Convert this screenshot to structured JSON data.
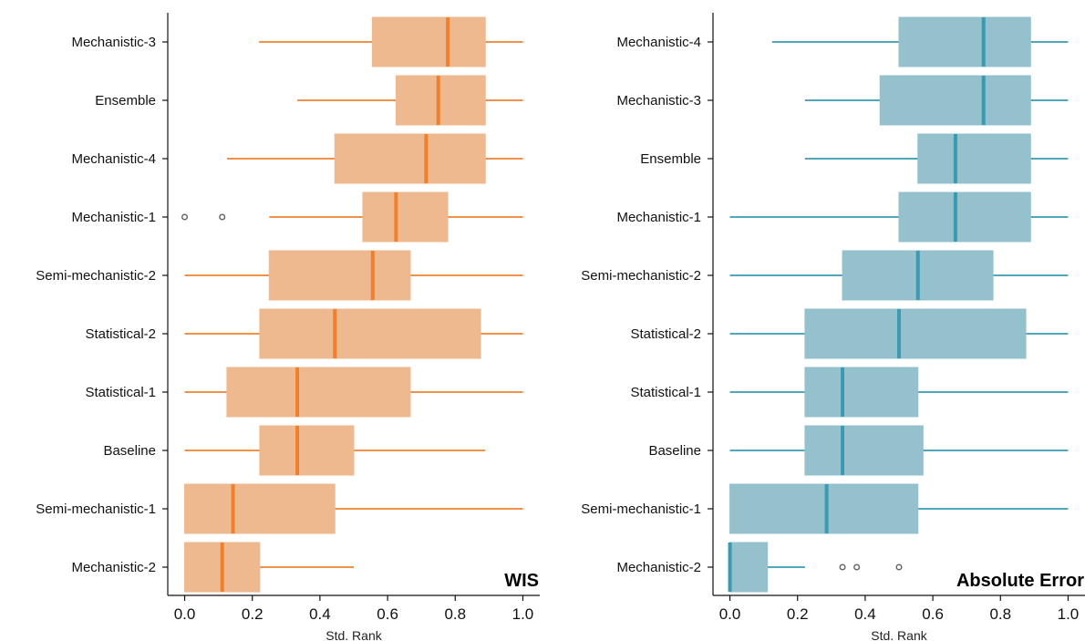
{
  "colors": {
    "wis_box": "#EEB98F",
    "wis_line": "#F07F2E",
    "ae_box": "#94C1CC",
    "ae_line": "#3A9AB2",
    "axis": "#111111",
    "outlier": "#666666"
  },
  "chart_data": [
    {
      "type": "boxplot",
      "orientation": "horizontal",
      "title": "WIS",
      "xlabel": "Std. Rank",
      "xlim": [
        -0.05,
        1.05
      ],
      "xticks": [
        "0.0",
        "0.2",
        "0.4",
        "0.6",
        "0.8",
        "1.0"
      ],
      "xtick_values": [
        0,
        0.2,
        0.4,
        0.6,
        0.8,
        1.0
      ],
      "grid": false,
      "categories": [
        "Mechanistic-3",
        "Ensemble",
        "Mechanistic-4",
        "Mechanistic-1",
        "Semi-mechanistic-2",
        "Statistical-2",
        "Statistical-1",
        "Baseline",
        "Semi-mechanistic-1",
        "Mechanistic-2"
      ],
      "boxes": [
        {
          "whislo": 0.22,
          "q1": 0.555,
          "med": 0.778,
          "q3": 0.889,
          "whishi": 1.0,
          "fliers": []
        },
        {
          "whislo": 0.333,
          "q1": 0.625,
          "med": 0.75,
          "q3": 0.889,
          "whishi": 1.0,
          "fliers": []
        },
        {
          "whislo": 0.125,
          "q1": 0.444,
          "med": 0.714,
          "q3": 0.889,
          "whishi": 1.0,
          "fliers": []
        },
        {
          "whislo": 0.25,
          "q1": 0.527,
          "med": 0.625,
          "q3": 0.778,
          "whishi": 1.0,
          "fliers": [
            0.0,
            0.111
          ]
        },
        {
          "whislo": 0.0,
          "q1": 0.25,
          "med": 0.556,
          "q3": 0.667,
          "whishi": 1.0,
          "fliers": []
        },
        {
          "whislo": 0.0,
          "q1": 0.222,
          "med": 0.444,
          "q3": 0.875,
          "whishi": 1.0,
          "fliers": []
        },
        {
          "whislo": 0.0,
          "q1": 0.125,
          "med": 0.333,
          "q3": 0.667,
          "whishi": 1.0,
          "fliers": []
        },
        {
          "whislo": 0.0,
          "q1": 0.222,
          "med": 0.333,
          "q3": 0.5,
          "whishi": 0.889,
          "fliers": []
        },
        {
          "whislo": 0.0,
          "q1": 0.0,
          "med": 0.143,
          "q3": 0.444,
          "whishi": 1.0,
          "fliers": []
        },
        {
          "whislo": 0.0,
          "q1": 0.0,
          "med": 0.111,
          "q3": 0.222,
          "whishi": 0.5,
          "fliers": []
        }
      ]
    },
    {
      "type": "boxplot",
      "orientation": "horizontal",
      "title": "Absolute Error",
      "xlabel": "Std. Rank",
      "xlim": [
        -0.05,
        1.05
      ],
      "xticks": [
        "0.0",
        "0.2",
        "0.4",
        "0.6",
        "0.8",
        "1.0"
      ],
      "xtick_values": [
        0,
        0.2,
        0.4,
        0.6,
        0.8,
        1.0
      ],
      "grid": false,
      "categories": [
        "Mechanistic-4",
        "Mechanistic-3",
        "Ensemble",
        "Mechanistic-1",
        "Semi-mechanistic-2",
        "Statistical-2",
        "Statistical-1",
        "Baseline",
        "Semi-mechanistic-1",
        "Mechanistic-2"
      ],
      "boxes": [
        {
          "whislo": 0.125,
          "q1": 0.5,
          "med": 0.75,
          "q3": 0.889,
          "whishi": 1.0,
          "fliers": []
        },
        {
          "whislo": 0.222,
          "q1": 0.444,
          "med": 0.75,
          "q3": 0.889,
          "whishi": 1.0,
          "fliers": []
        },
        {
          "whislo": 0.222,
          "q1": 0.556,
          "med": 0.667,
          "q3": 0.889,
          "whishi": 1.0,
          "fliers": []
        },
        {
          "whislo": 0.0,
          "q1": 0.5,
          "med": 0.667,
          "q3": 0.889,
          "whishi": 1.0,
          "fliers": []
        },
        {
          "whislo": 0.0,
          "q1": 0.333,
          "med": 0.556,
          "q3": 0.778,
          "whishi": 1.0,
          "fliers": []
        },
        {
          "whislo": 0.0,
          "q1": 0.222,
          "med": 0.5,
          "q3": 0.875,
          "whishi": 1.0,
          "fliers": []
        },
        {
          "whislo": 0.0,
          "q1": 0.222,
          "med": 0.333,
          "q3": 0.556,
          "whishi": 1.0,
          "fliers": []
        },
        {
          "whislo": 0.0,
          "q1": 0.222,
          "med": 0.333,
          "q3": 0.571,
          "whishi": 1.0,
          "fliers": []
        },
        {
          "whislo": 0.0,
          "q1": 0.0,
          "med": 0.286,
          "q3": 0.556,
          "whishi": 1.0,
          "fliers": []
        },
        {
          "whislo": 0.0,
          "q1": 0.0,
          "med": 0.0,
          "q3": 0.111,
          "whishi": 0.222,
          "fliers": [
            0.333,
            0.375,
            0.5
          ]
        }
      ]
    }
  ]
}
